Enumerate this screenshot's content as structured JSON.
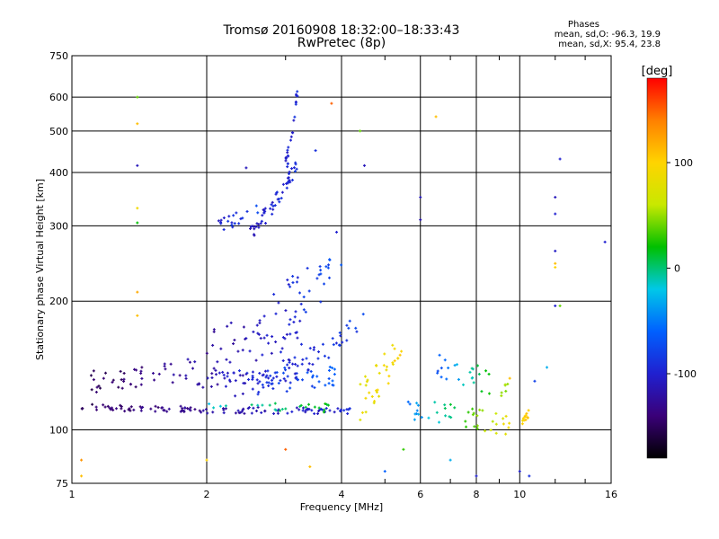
{
  "header": {
    "title": "Tromsø 20160908 18:32:00–18:33:43",
    "subtitle": "RwPretec (8p)"
  },
  "phases": {
    "title": "Phases",
    "line_o": "mean, sd,O: -96.3, 19.9",
    "line_x": "mean, sd,X:  95.4, 23.8"
  },
  "colorbar": {
    "unit": "[deg]",
    "ticks": [
      {
        "value": 100,
        "label": "100"
      },
      {
        "value": 0,
        "label": "0"
      },
      {
        "value": -100,
        "label": "-100"
      }
    ],
    "range": [
      -180,
      180
    ],
    "stops": [
      "#000000",
      "#3a0078",
      "#2020d0",
      "#0060ff",
      "#00c8e8",
      "#00c000",
      "#c8e800",
      "#ffd400",
      "#ff8000",
      "#ff0000"
    ]
  },
  "chart_data": {
    "type": "scatter",
    "title": "Tromsø 20160908 18:32:00–18:33:43",
    "subtitle": "RwPretec (8p)",
    "xlabel": "Frequency [MHz]",
    "ylabel": "Stationary phase Virtual Height [km]",
    "x_scale": "log",
    "y_scale": "log",
    "xlim": [
      1,
      16
    ],
    "ylim": [
      75,
      750
    ],
    "x_ticks": [
      {
        "value": 1,
        "label": "1"
      },
      {
        "value": 2,
        "label": "2"
      },
      {
        "value": 4,
        "label": "4"
      },
      {
        "value": 6,
        "label": "6"
      },
      {
        "value": 8,
        "label": "8"
      },
      {
        "value": 10,
        "label": "10"
      },
      {
        "value": 16,
        "label": "16"
      }
    ],
    "y_ticks": [
      {
        "value": 75,
        "label": "75"
      },
      {
        "value": 100,
        "label": "100"
      },
      {
        "value": 200,
        "label": "200"
      },
      {
        "value": 300,
        "label": "300"
      },
      {
        "value": 400,
        "label": "400"
      },
      {
        "value": 500,
        "label": "500"
      },
      {
        "value": 600,
        "label": "600"
      },
      {
        "value": 750,
        "label": "750"
      }
    ],
    "grid": true,
    "color_variable": "phase [deg]",
    "traces": [
      {
        "x_from": 1.05,
        "x_to": 2.0,
        "h_from": 113,
        "h_to": 111,
        "spread": 2,
        "count": 55,
        "phase_from": -150,
        "phase_to": -125
      },
      {
        "x_from": 2.0,
        "x_to": 4.2,
        "h_from": 111,
        "h_to": 111,
        "spread": 2,
        "count": 60,
        "phase_from": -125,
        "phase_to": -95
      },
      {
        "x_from": 1.1,
        "x_to": 1.9,
        "h_from": 130,
        "h_to": 140,
        "spread": 8,
        "count": 45,
        "phase_from": -150,
        "phase_to": -120
      },
      {
        "x_from": 1.9,
        "x_to": 3.0,
        "h_from": 130,
        "h_to": 135,
        "spread": 6,
        "count": 45,
        "phase_from": -120,
        "phase_to": -80
      },
      {
        "x_from": 2.3,
        "x_to": 4.0,
        "h_from": 128,
        "h_to": 135,
        "spread": 8,
        "count": 50,
        "phase_from": -110,
        "phase_to": -60
      },
      {
        "x_from": 3.0,
        "x_to": 4.6,
        "h_from": 140,
        "h_to": 185,
        "spread": 10,
        "count": 40,
        "phase_from": -100,
        "phase_to": -80
      },
      {
        "x_from": 2.0,
        "x_to": 3.3,
        "h_from": 150,
        "h_to": 175,
        "spread": 25,
        "count": 60,
        "phase_from": -125,
        "phase_to": -95
      },
      {
        "x_from": 2.5,
        "x_to": 3.2,
        "h_from": 295,
        "h_to": 420,
        "spread": 15,
        "count": 55,
        "phase_from": -110,
        "phase_to": -90
      },
      {
        "x_from": 3.0,
        "x_to": 3.2,
        "h_from": 420,
        "h_to": 640,
        "spread": 20,
        "count": 25,
        "phase_from": -100,
        "phase_to": -95
      },
      {
        "x_from": 2.1,
        "x_to": 2.6,
        "h_from": 300,
        "h_to": 330,
        "spread": 12,
        "count": 20,
        "phase_from": -100,
        "phase_to": -80
      },
      {
        "x_from": 2.8,
        "x_to": 4.0,
        "h_from": 200,
        "h_to": 240,
        "spread": 25,
        "count": 30,
        "phase_from": -100,
        "phase_to": -70
      },
      {
        "x_from": 4.4,
        "x_to": 5.5,
        "h_from": 120,
        "h_to": 160,
        "spread": 15,
        "count": 35,
        "phase_from": 80,
        "phase_to": 100
      },
      {
        "x_from": 5.5,
        "x_to": 9.5,
        "h_from": 112,
        "h_to": 102,
        "spread": 6,
        "count": 45,
        "phase_from": -60,
        "phase_to": 90
      },
      {
        "x_from": 6.5,
        "x_to": 9.5,
        "h_from": 140,
        "h_to": 125,
        "spread": 10,
        "count": 30,
        "phase_from": -70,
        "phase_to": 60
      },
      {
        "x_from": 10.0,
        "x_to": 10.5,
        "h_from": 103,
        "h_to": 110,
        "spread": 2,
        "count": 12,
        "phase_from": 90,
        "phase_to": 110
      },
      {
        "x_from": 2.0,
        "x_to": 4.0,
        "h_from": 115,
        "h_to": 112,
        "spread": 3,
        "count": 25,
        "phase_from": -20,
        "phase_to": 20
      }
    ],
    "scattered_points": [
      {
        "x": 1.4,
        "h": 600,
        "phase": 40
      },
      {
        "x": 1.4,
        "h": 520,
        "phase": 110
      },
      {
        "x": 1.4,
        "h": 415,
        "phase": -110
      },
      {
        "x": 1.4,
        "h": 330,
        "phase": 90
      },
      {
        "x": 1.4,
        "h": 305,
        "phase": 20
      },
      {
        "x": 1.4,
        "h": 210,
        "phase": 120
      },
      {
        "x": 1.4,
        "h": 185,
        "phase": 110
      },
      {
        "x": 1.05,
        "h": 85,
        "phase": 130
      },
      {
        "x": 1.05,
        "h": 78,
        "phase": 110
      },
      {
        "x": 2.45,
        "h": 410,
        "phase": -110
      },
      {
        "x": 3.8,
        "h": 580,
        "phase": 150
      },
      {
        "x": 3.5,
        "h": 450,
        "phase": -90
      },
      {
        "x": 3.9,
        "h": 290,
        "phase": -100
      },
      {
        "x": 4.4,
        "h": 500,
        "phase": 40
      },
      {
        "x": 4.5,
        "h": 415,
        "phase": -110
      },
      {
        "x": 6.0,
        "h": 350,
        "phase": -110
      },
      {
        "x": 6.0,
        "h": 310,
        "phase": -115
      },
      {
        "x": 6.5,
        "h": 540,
        "phase": 110
      },
      {
        "x": 12.0,
        "h": 350,
        "phase": -110
      },
      {
        "x": 12.0,
        "h": 320,
        "phase": -100
      },
      {
        "x": 12.3,
        "h": 430,
        "phase": -100
      },
      {
        "x": 12.0,
        "h": 262,
        "phase": -105
      },
      {
        "x": 12.0,
        "h": 245,
        "phase": 110
      },
      {
        "x": 12.0,
        "h": 240,
        "phase": 100
      },
      {
        "x": 12.0,
        "h": 195,
        "phase": -100
      },
      {
        "x": 12.3,
        "h": 195,
        "phase": 40
      },
      {
        "x": 15.5,
        "h": 275,
        "phase": -100
      },
      {
        "x": 2.0,
        "h": 85,
        "phase": 100
      },
      {
        "x": 3.0,
        "h": 90,
        "phase": 150
      },
      {
        "x": 3.4,
        "h": 82,
        "phase": 110
      },
      {
        "x": 5.0,
        "h": 80,
        "phase": -60
      },
      {
        "x": 5.5,
        "h": 90,
        "phase": 30
      },
      {
        "x": 7.0,
        "h": 85,
        "phase": -30
      },
      {
        "x": 8.0,
        "h": 78,
        "phase": -100
      },
      {
        "x": 10.0,
        "h": 80,
        "phase": -100
      },
      {
        "x": 10.5,
        "h": 78,
        "phase": -90
      },
      {
        "x": 11.5,
        "h": 140,
        "phase": -30
      },
      {
        "x": 10.8,
        "h": 130,
        "phase": -80
      },
      {
        "x": 9.5,
        "h": 132,
        "phase": 110
      }
    ]
  }
}
